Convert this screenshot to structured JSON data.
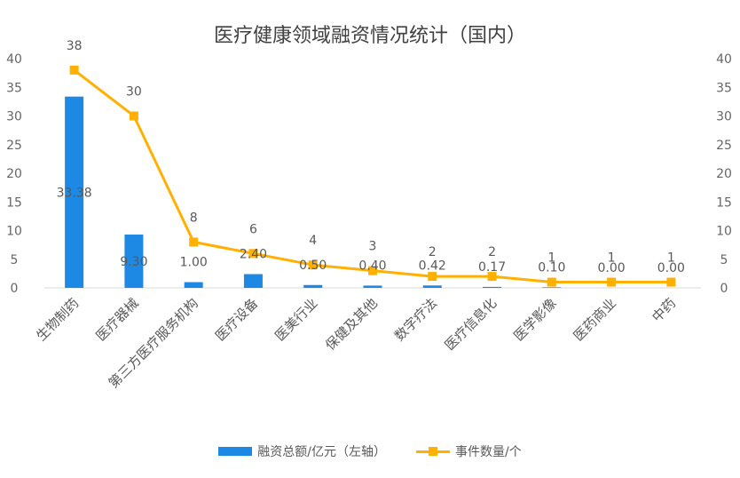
{
  "chart_data": {
    "type": "bar+line",
    "title": "医疗健康领域融资情况统计（国内）",
    "categories": [
      "生物制药",
      "医疗器械",
      "第三方医疗服务机构",
      "医疗设备",
      "医美行业",
      "保健及其他",
      "数字疗法",
      "医疗信息化",
      "医学影像",
      "医药商业",
      "中药"
    ],
    "series": [
      {
        "name": "融资总额/亿元（左轴）",
        "type": "bar",
        "axis": "left",
        "color": "#1E88E5",
        "values": [
          33.38,
          9.3,
          1.0,
          2.4,
          0.5,
          0.4,
          0.42,
          0.17,
          0.1,
          0.0,
          0.0
        ],
        "labels": [
          "33.38",
          "9.30",
          "1.00",
          "2.40",
          "0.50",
          "0.40",
          "0.42",
          "0.17",
          "0.10",
          "0.00",
          "0.00"
        ]
      },
      {
        "name": "事件数量/个",
        "type": "line",
        "axis": "right",
        "color": "#FFB000",
        "values": [
          38,
          30,
          8,
          6,
          4,
          3,
          2,
          2,
          1,
          1,
          1
        ],
        "labels": [
          "38",
          "30",
          "8",
          "6",
          "4",
          "3",
          "2",
          "2",
          "1",
          "1",
          "1"
        ]
      }
    ],
    "ylim_left": [
      0,
      40
    ],
    "ylim_right": [
      0,
      40
    ],
    "yticks": [
      "0",
      "5",
      "10",
      "15",
      "20",
      "25",
      "30",
      "35",
      "40"
    ],
    "grid": false,
    "legend_position": "bottom"
  }
}
